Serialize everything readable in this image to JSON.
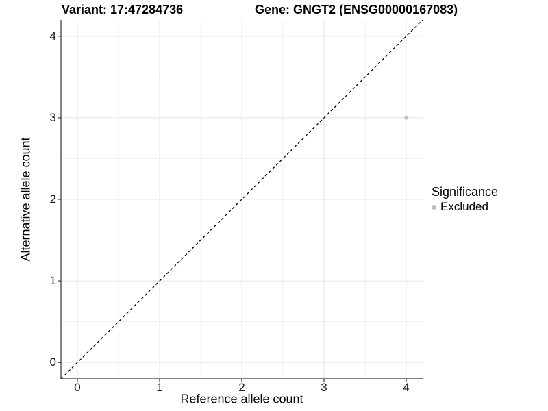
{
  "titles": {
    "variant": "Variant: 17:47284736",
    "gene": "Gene: GNGT2 (ENSG00000167083)"
  },
  "axes": {
    "x_label": "Reference allele count",
    "y_label": "Alternative allele count"
  },
  "legend": {
    "title": "Significance",
    "items": [
      {
        "label": "Excluded",
        "color": "#bebebe"
      }
    ]
  },
  "chart_data": {
    "type": "scatter",
    "title_left": "Variant: 17:47284736",
    "title_right": "Gene: GNGT2 (ENSG00000167083)",
    "xlabel": "Reference allele count",
    "ylabel": "Alternative allele count",
    "xlim": [
      -0.2,
      4.2
    ],
    "ylim": [
      -0.2,
      4.2
    ],
    "x_ticks": [
      0,
      1,
      2,
      3,
      4
    ],
    "y_ticks": [
      0,
      1,
      2,
      3,
      4
    ],
    "x_minor_ticks": [
      0.5,
      1.5,
      2.5,
      3.5
    ],
    "y_minor_ticks": [
      0.5,
      1.5,
      2.5,
      3.5
    ],
    "grid": true,
    "legend_position": "right",
    "identity_line": {
      "style": "dashed",
      "color": "#000000",
      "from": [
        -0.2,
        -0.2
      ],
      "to": [
        4.2,
        4.2
      ]
    },
    "series": [
      {
        "name": "Excluded",
        "color": "#bebebe",
        "points": [
          {
            "x": 4,
            "y": 3
          }
        ]
      }
    ],
    "colors": {
      "background": "#ffffff",
      "grid_major": "#e4e4e4",
      "grid_minor": "#f1f1f1",
      "axis_line": "#333333",
      "tick_label": "#1a1a1a",
      "point": "#bebebe",
      "dashed_line": "#000000"
    }
  }
}
